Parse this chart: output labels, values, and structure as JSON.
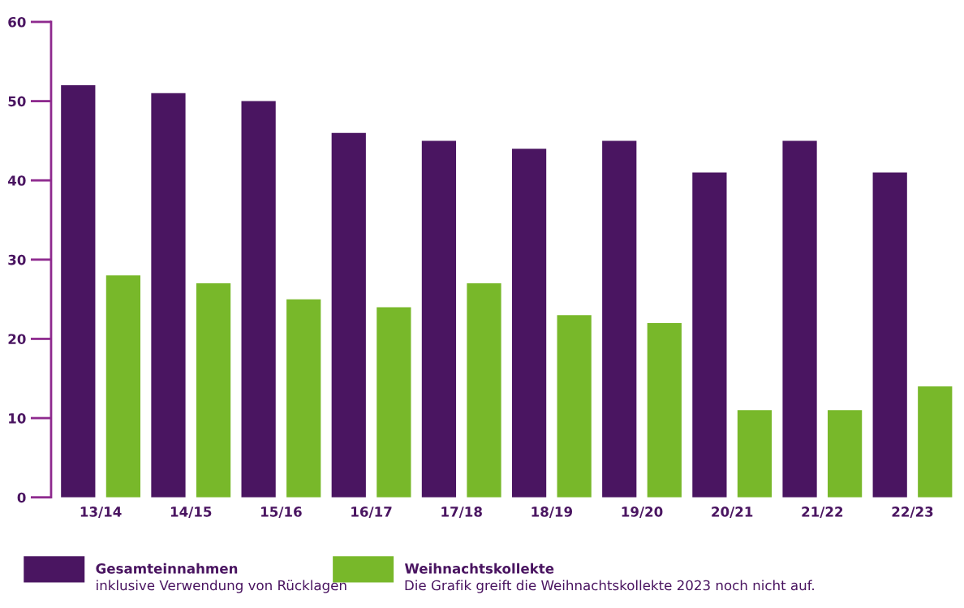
{
  "chart_data": {
    "type": "bar",
    "categories": [
      "13/14",
      "14/15",
      "15/16",
      "16/17",
      "17/18",
      "18/19",
      "19/20",
      "20/21",
      "21/22",
      "22/23"
    ],
    "series": [
      {
        "name": "Gesamteinnahmen",
        "color": "#4a1561",
        "values": [
          52,
          51,
          50,
          46,
          45,
          44,
          45,
          41,
          45,
          41
        ]
      },
      {
        "name": "Weihnachtskollekte",
        "color": "#78b82a",
        "values": [
          28,
          27,
          25,
          24,
          27,
          23,
          22,
          11,
          11,
          14
        ]
      }
    ],
    "ylim": [
      0,
      60
    ],
    "yticks": [
      0,
      10,
      20,
      30,
      40,
      50,
      60
    ],
    "grid": false,
    "legend": "bottom",
    "annotations": [
      "inklusive Verwendung von Rücklagen",
      "Die Grafik greift die Weihnachtskollekte 2023 noch nicht auf."
    ]
  }
}
